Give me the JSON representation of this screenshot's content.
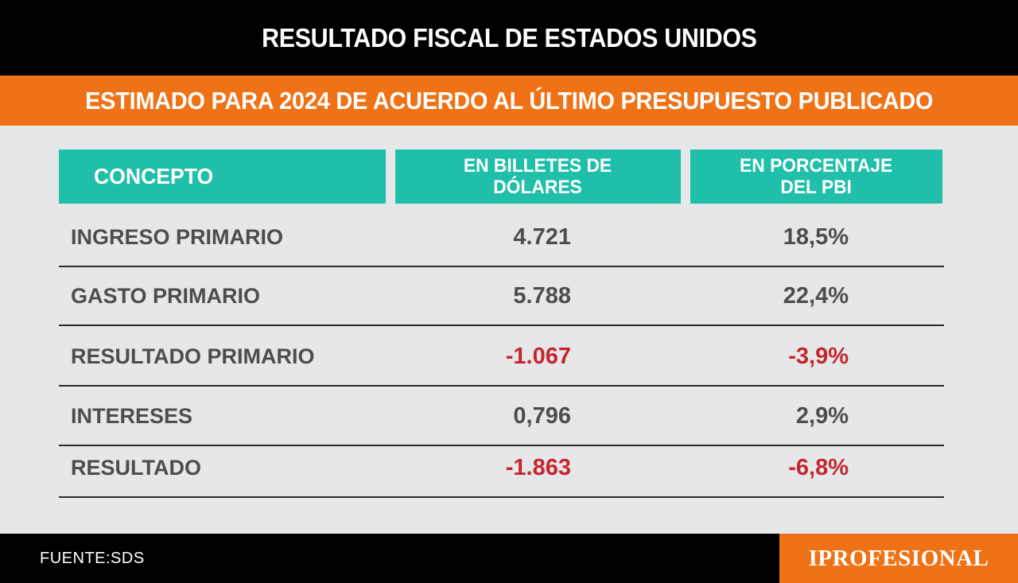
{
  "header": {
    "title": "RESULTADO FISCAL DE ESTADOS UNIDOS",
    "subtitle": "ESTIMADO PARA 2024 DE ACUERDO AL ÚLTIMO PRESUPUESTO PUBLICADO"
  },
  "chart_data": {
    "type": "table",
    "columns": [
      {
        "line1": "CONCEPTO",
        "line2": ""
      },
      {
        "line1": "EN BILLETES DE",
        "line2": "DÓLARES"
      },
      {
        "line1": "EN PORCENTAJE",
        "line2": "DEL PBI"
      }
    ],
    "rows": [
      {
        "concept": "INGRESO PRIMARIO",
        "usd": "4.721",
        "pct": "18,5%",
        "negative": false
      },
      {
        "concept": "GASTO PRIMARIO",
        "usd": "5.788",
        "pct": "22,4%",
        "negative": false
      },
      {
        "concept": "RESULTADO PRIMARIO",
        "usd": "-1.067",
        "pct": "-3,9%",
        "negative": true
      },
      {
        "concept": "INTERESES",
        "usd": "0,796",
        "pct": "2,9%",
        "negative": false
      },
      {
        "concept": "RESULTADO",
        "usd": "-1.863",
        "pct": "-6,8%",
        "negative": true
      }
    ]
  },
  "footer": {
    "source": "FUENTE:SDS",
    "brand": "IPROFESIONAL"
  },
  "colors": {
    "orange": "#ef7316",
    "teal": "#1fbfaa",
    "negative": "#c4262e",
    "text": "#4d4d4f"
  }
}
